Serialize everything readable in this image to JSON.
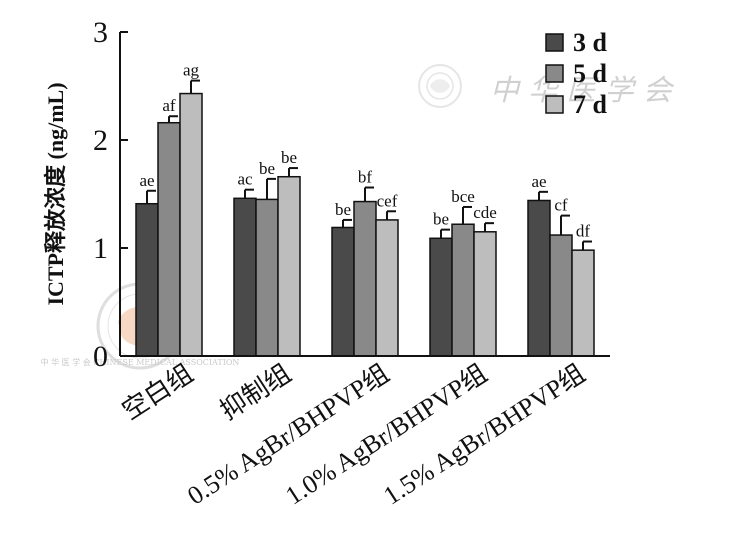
{
  "chart_data": {
    "type": "bar",
    "categories": [
      "空白组",
      "抑制组",
      "0.5% AgBr/BHPVP组",
      "1.0% AgBr/BHPVP组",
      "1.5% AgBr/BHPVP组"
    ],
    "series": [
      {
        "name": "3 d",
        "color": "#4a4a4a",
        "values": [
          1.41,
          1.46,
          1.19,
          1.09,
          1.44
        ],
        "errors": [
          0.12,
          0.08,
          0.07,
          0.08,
          0.08
        ],
        "labels": [
          "ae",
          "ac",
          "be",
          "be",
          "ae"
        ]
      },
      {
        "name": "5 d",
        "color": "#898989",
        "values": [
          2.16,
          1.45,
          1.43,
          1.22,
          1.12
        ],
        "errors": [
          0.06,
          0.19,
          0.13,
          0.16,
          0.18
        ],
        "labels": [
          "af",
          "be",
          "bf",
          "bce",
          "cf"
        ]
      },
      {
        "name": "7 d",
        "color": "#bdbdbd",
        "values": [
          2.43,
          1.66,
          1.26,
          1.15,
          0.98
        ],
        "errors": [
          0.12,
          0.08,
          0.08,
          0.08,
          0.08
        ],
        "labels": [
          "ag",
          "be",
          "cef",
          "cde",
          "df"
        ]
      }
    ],
    "ylabel": "ICTP释放浓度 (ng/mL)",
    "xlabel": "",
    "ylim": [
      0,
      3
    ],
    "yticks": [
      0,
      1,
      2,
      3
    ],
    "legend_position": "top-right",
    "grid": false,
    "watermarks": {
      "top_right_text": "中 华 医 学 会",
      "stamp_text": "中 华 医 学 会 CHINESE MEDICAL ASSOCIATION"
    }
  }
}
